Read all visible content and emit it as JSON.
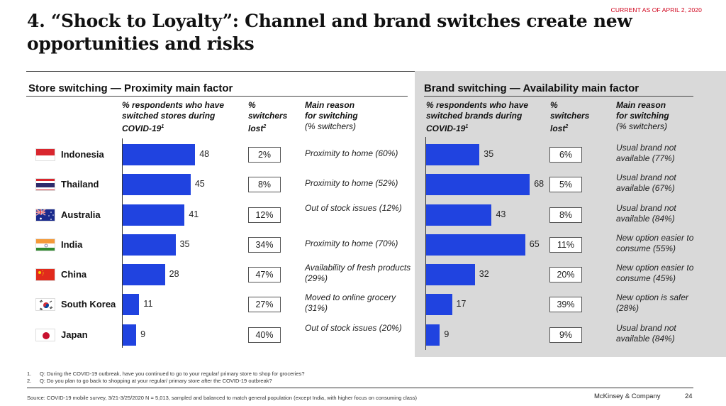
{
  "header": {
    "current_as_of": "CURRENT AS OF APRIL 2, 2020",
    "title": "4. “Shock to Loyalty”: Channel and brand switches create new opportunities and risks"
  },
  "store_panel": {
    "title": "Store switching — Proximity main factor",
    "col1_head": [
      "% respondents who have",
      "switched stores during",
      "COVID-19"
    ],
    "col1_sup": "1",
    "col2_head": [
      "%",
      "switchers",
      "lost"
    ],
    "col2_sup": "2",
    "col3_head": [
      "Main reason",
      "for switching"
    ],
    "col3_sub": "(% switchers)"
  },
  "brand_panel": {
    "title": "Brand switching — Availability main factor",
    "col1_head": [
      "% respondents who have",
      "switched brands during",
      "COVID-19"
    ],
    "col1_sup": "1",
    "col2_head": [
      "%",
      "switchers",
      "lost"
    ],
    "col2_sup": "2",
    "col3_head": [
      "Main reason",
      "for switching"
    ],
    "col3_sub": "(% switchers)"
  },
  "colors": {
    "bar": "#2043e0",
    "accent_red": "#d0021b",
    "panel_gray": "#d9d9d9"
  },
  "chart_data": [
    {
      "type": "bar",
      "orientation": "horizontal",
      "title": "Store switching — Proximity main factor",
      "categories": [
        "Indonesia",
        "Thailand",
        "Australia",
        "India",
        "China",
        "South Korea",
        "Japan"
      ],
      "flags": [
        "flag-indonesia",
        "flag-thailand",
        "flag-australia",
        "flag-india",
        "flag-china",
        "flag-south-korea",
        "flag-japan"
      ],
      "values": [
        48,
        45,
        41,
        35,
        28,
        11,
        9
      ],
      "value_label": "% respondents who have switched stores during COVID-19",
      "switchers_lost": [
        "2%",
        "8%",
        "12%",
        "34%",
        "47%",
        "27%",
        "40%"
      ],
      "main_reason": [
        "Proximity to home (60%)",
        "Proximity to home (52%)",
        "Out of stock issues (12%)",
        "Proximity to home (70%)",
        "Availability of fresh products (29%)",
        "Moved to online grocery (31%)",
        "Out of stock issues (20%)"
      ],
      "xlim": [
        0,
        70
      ]
    },
    {
      "type": "bar",
      "orientation": "horizontal",
      "title": "Brand switching — Availability main factor",
      "categories": [
        "Indonesia",
        "Thailand",
        "Australia",
        "India",
        "China",
        "South Korea",
        "Japan"
      ],
      "values": [
        35,
        68,
        43,
        65,
        32,
        17,
        9
      ],
      "value_label": "% respondents who have switched brands during COVID-19",
      "switchers_lost": [
        "6%",
        "5%",
        "8%",
        "11%",
        "20%",
        "39%",
        "9%"
      ],
      "main_reason": [
        "Usual brand not available (77%)",
        "Usual brand not available (67%)",
        "Usual brand not available (84%)",
        "New option easier to consume (55%)",
        "New option easier to consume (45%)",
        "New option is safer (28%)",
        "Usual brand not available (84%)"
      ],
      "xlim": [
        0,
        70
      ]
    }
  ],
  "footnotes": [
    {
      "num": "1.",
      "text": "Q: During the COVID-19 outbreak, have you continued to go to your regular/ primary store to shop for groceries?"
    },
    {
      "num": "2.",
      "text": "Q: Do you plan to go back to shopping at your regular/ primary store after the COVID-19 outbreak?"
    }
  ],
  "footer": {
    "source": "Source: COVID-19 mobile survey, 3/21-3/25/2020 N = 5,013, sampled and balanced to match general population (except India, with higher focus on consuming class)",
    "brand": "McKinsey & Company",
    "page": "24"
  }
}
